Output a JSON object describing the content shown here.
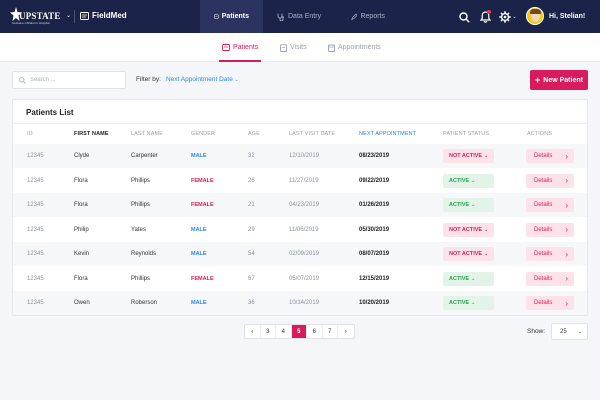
{
  "brand": {
    "logo_text": "UPSTATE",
    "logo_sub": "Golisano Children's Hospital",
    "app_name": "FieldMed"
  },
  "nav": {
    "tabs": [
      {
        "label": "Patients",
        "active": true
      },
      {
        "label": "Data Entry",
        "active": false
      },
      {
        "label": "Reports",
        "active": false
      }
    ],
    "greeting": "Hi, Stelian!"
  },
  "subnav": {
    "tabs": [
      {
        "label": "Patients",
        "active": true
      },
      {
        "label": "Visits",
        "active": false
      },
      {
        "label": "Appointments",
        "active": false
      }
    ]
  },
  "toolbar": {
    "search_placeholder": "Search ...",
    "filter_label": "Filter by:",
    "filter_value": "Next Appointment Date",
    "new_button": "New Patient"
  },
  "table": {
    "title": "Patients List",
    "headers": [
      "ID",
      "FIRST NAME",
      "LAST NAME",
      "GENDER",
      "AGE",
      "LAST VISIT DATE",
      "NEXT APPOINTMENT",
      "PATIENT STATUS",
      "ACTIONS"
    ],
    "rows": [
      {
        "id": "12345",
        "first": "Clyde",
        "last": "Carpenter",
        "gender": "MALE",
        "age": "32",
        "last_visit": "12/10/2019",
        "next_appt": "08/23/2019",
        "status": "NOT ACTIVE",
        "action": "Details"
      },
      {
        "id": "12345",
        "first": "Flora",
        "last": "Phillips",
        "gender": "FEMALE",
        "age": "26",
        "last_visit": "11/27/2019",
        "next_appt": "09/22/2019",
        "status": "ACTIVE",
        "action": "Details"
      },
      {
        "id": "12345",
        "first": "Flora",
        "last": "Phillips",
        "gender": "FEMALE",
        "age": "21",
        "last_visit": "04/23/2019",
        "next_appt": "01/26/2019",
        "status": "ACTIVE",
        "action": "Details"
      },
      {
        "id": "12345",
        "first": "Philip",
        "last": "Yates",
        "gender": "MALE",
        "age": "29",
        "last_visit": "11/06/2019",
        "next_appt": "05/30/2019",
        "status": "NOT ACTIVE",
        "action": "Details"
      },
      {
        "id": "12345",
        "first": "Kevin",
        "last": "Reynolds",
        "gender": "MALE",
        "age": "54",
        "last_visit": "02/09/2019",
        "next_appt": "08/07/2019",
        "status": "NOT ACTIVE",
        "action": "Details"
      },
      {
        "id": "12345",
        "first": "Flora",
        "last": "Phillips",
        "gender": "FEMALE",
        "age": "67",
        "last_visit": "05/07/2019",
        "next_appt": "12/15/2019",
        "status": "ACTIVE",
        "action": "Details"
      },
      {
        "id": "12345",
        "first": "Owen",
        "last": "Roberson",
        "gender": "MALE",
        "age": "36",
        "last_visit": "10/14/2019",
        "next_appt": "10/20/2019",
        "status": "ACTIVE",
        "action": "Details"
      }
    ]
  },
  "pagination": {
    "pages": [
      "3",
      "4",
      "5",
      "6",
      "7"
    ],
    "current": "5",
    "prev": "‹",
    "next": "›",
    "show_label": "Show:",
    "page_size": "25"
  },
  "colors": {
    "topbar": "#1b2448",
    "accent": "#d81b5c",
    "link": "#2e86de",
    "active_green": "#2e9b55"
  }
}
